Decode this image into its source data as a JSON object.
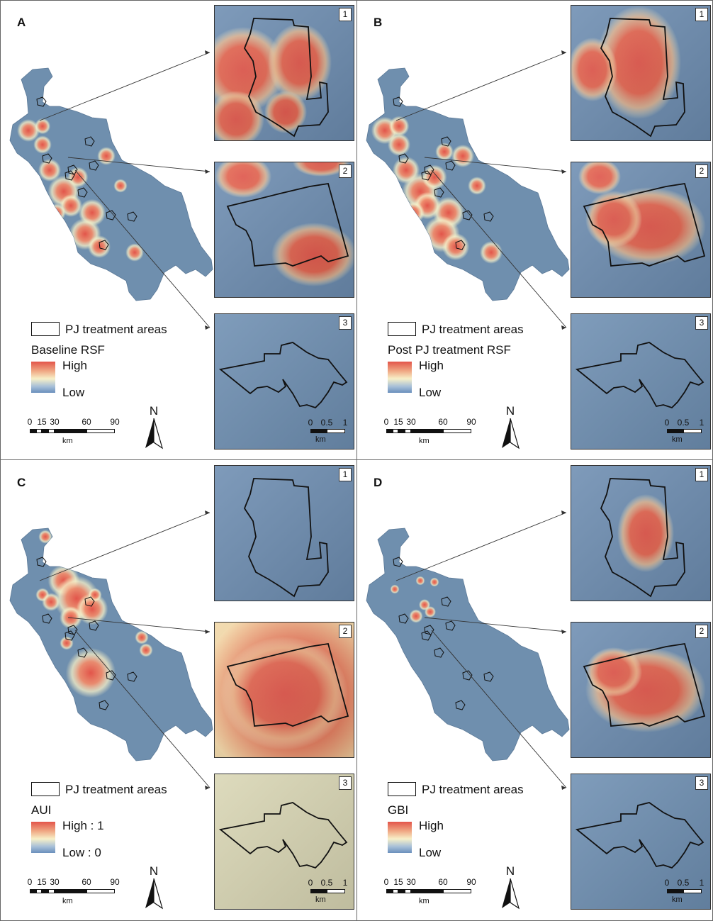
{
  "panels": [
    {
      "letter": "A",
      "legend_title": "Baseline RSF",
      "high": "High",
      "low": "Low",
      "theme": "rsf"
    },
    {
      "letter": "B",
      "legend_title": "Post PJ treatment RSF",
      "high": "High",
      "low": "Low",
      "theme": "post"
    },
    {
      "letter": "C",
      "legend_title": "AUI",
      "high": "High : 1",
      "low": "Low : 0",
      "theme": "aui"
    },
    {
      "letter": "D",
      "legend_title": "GBI",
      "high": "High",
      "low": "Low",
      "theme": "gbi"
    }
  ],
  "legend_outline_label": "PJ treatment areas",
  "inset_numbers": [
    "1",
    "2",
    "3"
  ],
  "scale_ticks": [
    "0",
    "15",
    "30",
    "60",
    "90"
  ],
  "scale_unit": "km",
  "inset_scale_ticks": [
    "0",
    "0.5",
    "1"
  ],
  "inset_scale_unit": "km",
  "north_label": "N",
  "colors": {
    "high": "#e2554a",
    "mid": "#f7f0c8",
    "low": "#6a8fbc",
    "terrain": "#6f8fae"
  }
}
